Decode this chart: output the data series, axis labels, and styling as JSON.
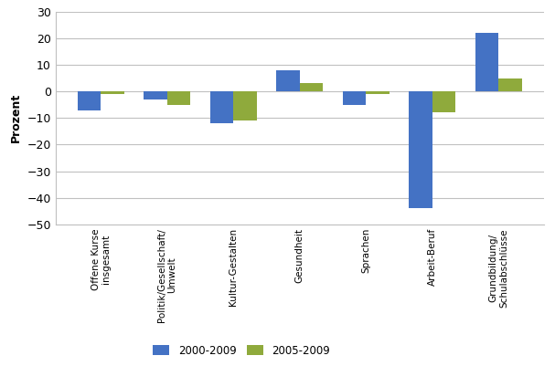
{
  "categories": [
    "Offene Kurse\ninsgesamt",
    "Politik/Gesellschaft/\nUmwelt",
    "Kultur-Gestalten",
    "Gesundheit",
    "Sprachen",
    "Arbeit-Beruf",
    "Grundbildung/\nSchulabschlüsse"
  ],
  "values_2000_2009": [
    -7,
    -3,
    -12,
    8,
    -5,
    -44,
    22
  ],
  "values_2005_2009": [
    -1,
    -5,
    -11,
    3,
    -1,
    -8,
    5
  ],
  "color_2000_2009": "#4472c4",
  "color_2005_2009": "#8faa3c",
  "ylabel": "Prozent",
  "ylim": [
    -50,
    30
  ],
  "yticks": [
    -50,
    -40,
    -30,
    -20,
    -10,
    0,
    10,
    20,
    30
  ],
  "legend_2000": "2000-2009",
  "legend_2005": "2005-2009",
  "bar_width": 0.35,
  "background_color": "#ffffff"
}
